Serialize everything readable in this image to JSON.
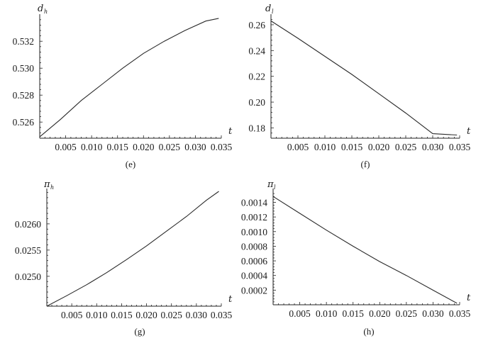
{
  "chart_data": [
    {
      "type": "line",
      "caption": "(e)",
      "ylabel": {
        "main": "d",
        "sub": "h"
      },
      "xlabel": "t",
      "xlim": [
        0,
        0.035
      ],
      "ylim": [
        0.5248,
        0.5338
      ],
      "xticks": [
        "0.005",
        "0.010",
        "0.015",
        "0.020",
        "0.025",
        "0.030",
        "0.035"
      ],
      "yticks": [
        "0.526",
        "0.528",
        "0.530",
        "0.532"
      ],
      "series": [
        {
          "x": [
            0.0,
            0.004,
            0.008,
            0.012,
            0.016,
            0.02,
            0.024,
            0.028,
            0.032,
            0.0345
          ],
          "y": [
            0.5249,
            0.5262,
            0.5276,
            0.5288,
            0.53,
            0.5311,
            0.532,
            0.5328,
            0.5335,
            0.5337
          ]
        }
      ]
    },
    {
      "type": "line",
      "caption": "(f)",
      "ylabel": {
        "main": "d",
        "sub": "l"
      },
      "xlabel": "t",
      "xlim": [
        0,
        0.035
      ],
      "ylim": [
        0.172,
        0.266
      ],
      "xticks": [
        "0.005",
        "0.010",
        "0.015",
        "0.020",
        "0.025",
        "0.030",
        "0.035"
      ],
      "yticks": [
        "0.18",
        "0.20",
        "0.22",
        "0.24",
        "0.26"
      ],
      "series": [
        {
          "x": [
            0.0,
            0.005,
            0.01,
            0.015,
            0.02,
            0.025,
            0.03,
            0.0345
          ],
          "y": [
            0.263,
            0.2495,
            0.2355,
            0.2215,
            0.2065,
            0.1915,
            0.1755,
            0.1745
          ]
        }
      ]
    },
    {
      "type": "line",
      "caption": "(g)",
      "ylabel": {
        "main": "π",
        "sub": "h"
      },
      "xlabel": "t",
      "xlim": [
        0,
        0.035
      ],
      "ylim": [
        0.02443,
        0.02662
      ],
      "xticks": [
        "0.005",
        "0.010",
        "0.015",
        "0.020",
        "0.025",
        "0.030",
        "0.035"
      ],
      "yticks": [
        "0.0250",
        "0.0255",
        "0.0260"
      ],
      "series": [
        {
          "x": [
            0.0,
            0.004,
            0.008,
            0.012,
            0.016,
            0.02,
            0.024,
            0.028,
            0.032,
            0.0345
          ],
          "y": [
            0.02443,
            0.02463,
            0.02484,
            0.02507,
            0.02532,
            0.02558,
            0.02586,
            0.02614,
            0.02645,
            0.02662
          ]
        }
      ]
    },
    {
      "type": "line",
      "caption": "(h)",
      "ylabel": {
        "main": "π",
        "sub": "l"
      },
      "xlabel": "t",
      "xlim": [
        0,
        0.035
      ],
      "ylim": [
        0,
        0.00155
      ],
      "xticks": [
        "0.005",
        "0.010",
        "0.015",
        "0.020",
        "0.025",
        "0.030",
        "0.035"
      ],
      "yticks": [
        "0.0002",
        "0.0004",
        "0.0006",
        "0.0008",
        "0.0010",
        "0.0012",
        "0.0014"
      ],
      "series": [
        {
          "x": [
            0.0,
            0.005,
            0.01,
            0.015,
            0.02,
            0.025,
            0.03,
            0.0345
          ],
          "y": [
            0.00148,
            0.00125,
            0.00102,
            0.0008,
            0.00059,
            0.0004,
            0.0002,
            2e-05
          ]
        }
      ]
    }
  ]
}
